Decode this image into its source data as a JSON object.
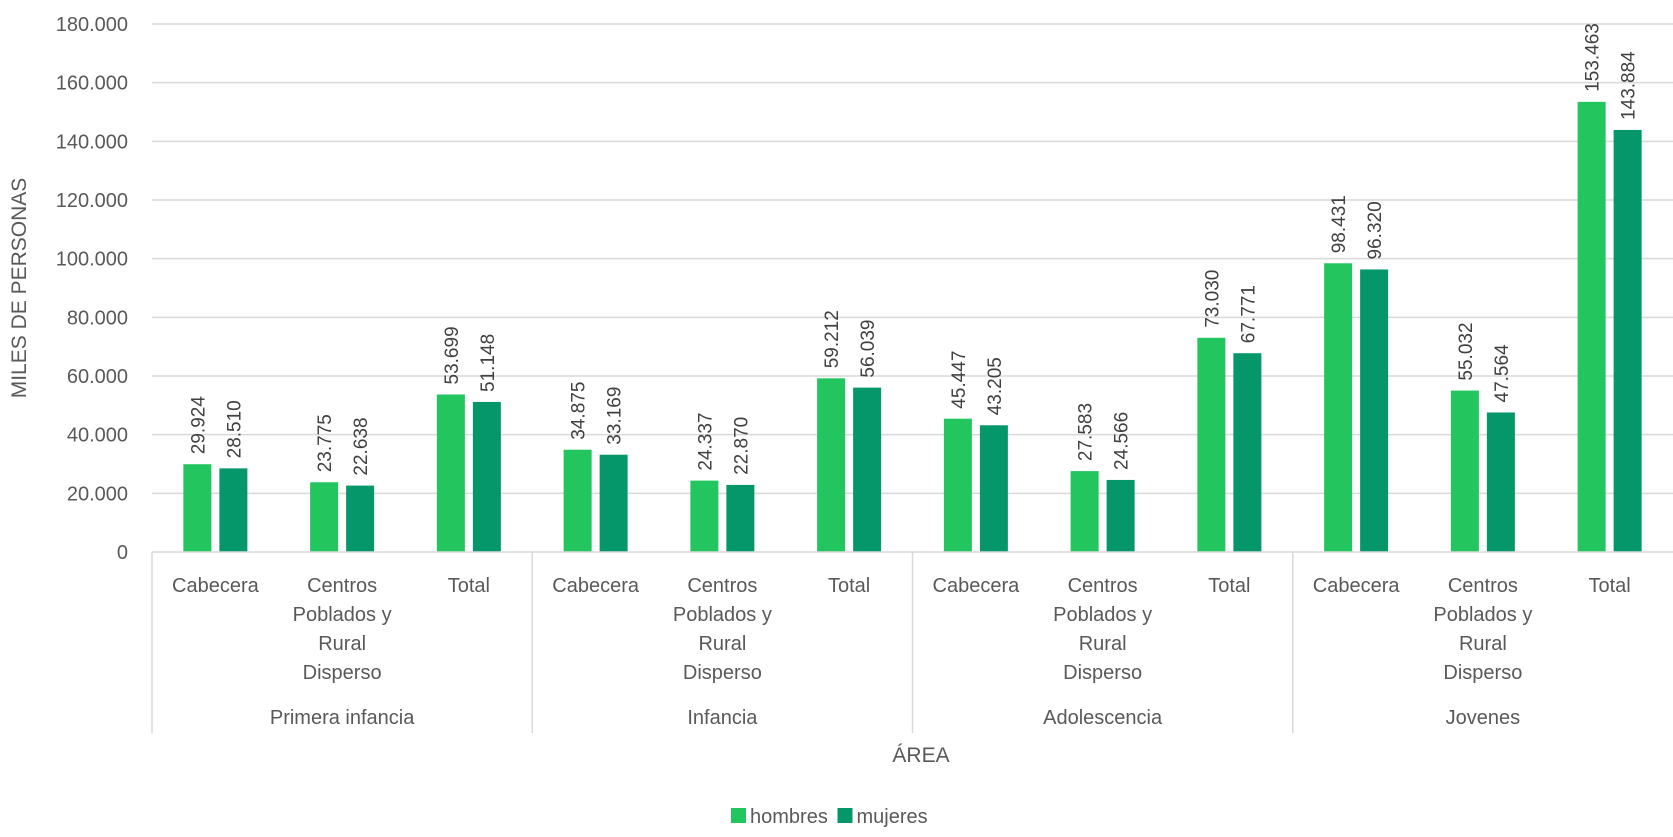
{
  "chart_data": {
    "type": "bar",
    "title": "",
    "xlabel": "ÁREA",
    "ylabel": "MILES DE PERSONAS",
    "ylim": [
      0,
      180000
    ],
    "yticks": [
      0,
      20000,
      40000,
      60000,
      80000,
      100000,
      120000,
      140000,
      160000,
      180000
    ],
    "ytick_labels": [
      "0",
      "20.000",
      "40.000",
      "60.000",
      "80.000",
      "100.000",
      "120.000",
      "140.000",
      "160.000",
      "180.000"
    ],
    "grid": true,
    "legend_position": "bottom",
    "groups": [
      {
        "name": "Primera infancia",
        "categories": [
          "Cabecera",
          "Centros Poblados y Rural Disperso",
          "Total"
        ]
      },
      {
        "name": "Infancia",
        "categories": [
          "Cabecera",
          "Centros Poblados y Rural Disperso",
          "Total"
        ]
      },
      {
        "name": "Adolescencia",
        "categories": [
          "Cabecera",
          "Centros Poblados y Rural Disperso",
          "Total"
        ]
      },
      {
        "name": "Jovenes",
        "categories": [
          "Cabecera",
          "Centros Poblados y Rural Disperso",
          "Total"
        ]
      }
    ],
    "category_label_lines": {
      "Cabecera": [
        "Cabecera"
      ],
      "Centros Poblados y Rural Disperso": [
        "Centros",
        "Poblados y",
        "Rural",
        "Disperso"
      ],
      "Total": [
        "Total"
      ]
    },
    "series": [
      {
        "name": "hombres",
        "color": "#22c55e",
        "values": [
          29924,
          23775,
          53699,
          34875,
          24337,
          59212,
          45447,
          27583,
          73030,
          98431,
          55032,
          153463
        ],
        "labels": [
          "29.924",
          "23.775",
          "53.699",
          "34.875",
          "24.337",
          "59.212",
          "45.447",
          "27.583",
          "73.030",
          "98.431",
          "55.032",
          "153.463"
        ]
      },
      {
        "name": "mujeres",
        "color": "#059669",
        "values": [
          28510,
          22638,
          51148,
          33169,
          22870,
          56039,
          43205,
          24566,
          67771,
          96320,
          47564,
          143884
        ],
        "labels": [
          "28.510",
          "22.638",
          "51.148",
          "33.169",
          "22.870",
          "56.039",
          "43.205",
          "24.566",
          "67.771",
          "96.320",
          "47.564",
          "143.884"
        ]
      }
    ]
  }
}
